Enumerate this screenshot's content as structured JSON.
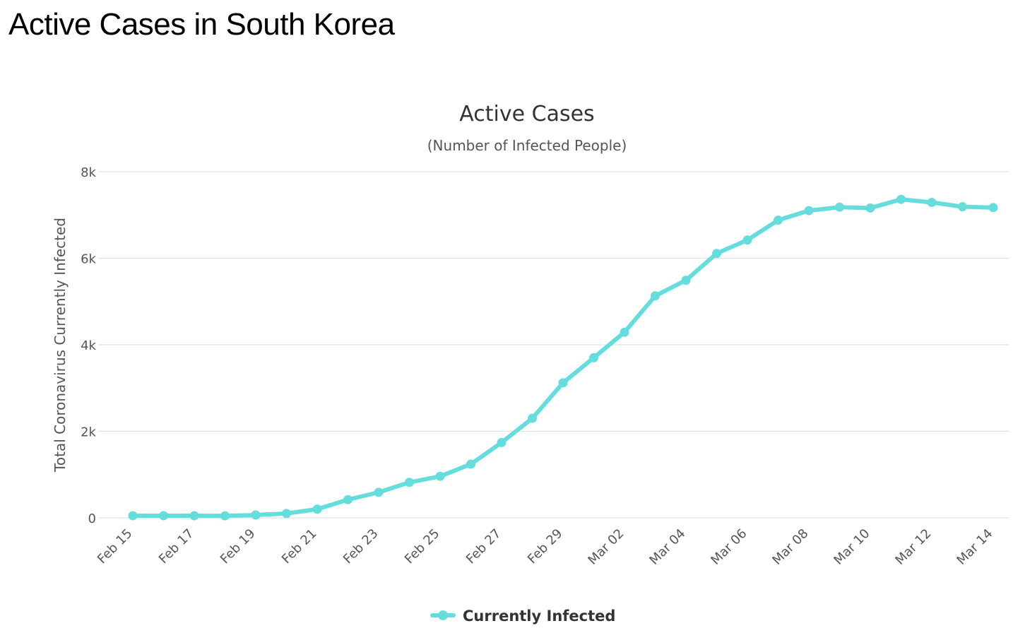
{
  "page": {
    "heading": "Active Cases in South Korea"
  },
  "chart_data": {
    "type": "line",
    "title": "Active Cases",
    "subtitle": "(Number of Infected People)",
    "ylabel": "Total Coronavirus Currently Infected",
    "xlabel": "",
    "ylim": [
      0,
      8000
    ],
    "y_ticks": [
      {
        "value": 0,
        "label": "0"
      },
      {
        "value": 2000,
        "label": "2k"
      },
      {
        "value": 4000,
        "label": "4k"
      },
      {
        "value": 6000,
        "label": "6k"
      },
      {
        "value": 8000,
        "label": "8k"
      }
    ],
    "x": [
      "Feb 15",
      "Feb 16",
      "Feb 17",
      "Feb 18",
      "Feb 19",
      "Feb 20",
      "Feb 21",
      "Feb 22",
      "Feb 23",
      "Feb 24",
      "Feb 25",
      "Feb 26",
      "Feb 27",
      "Feb 28",
      "Feb 29",
      "Mar 01",
      "Mar 02",
      "Mar 03",
      "Mar 04",
      "Mar 05",
      "Mar 06",
      "Mar 07",
      "Mar 08",
      "Mar 09",
      "Mar 10",
      "Mar 11",
      "Mar 12",
      "Mar 13",
      "Mar 14"
    ],
    "x_tick_labels": [
      "Feb 15",
      "Feb 17",
      "Feb 19",
      "Feb 21",
      "Feb 23",
      "Feb 25",
      "Feb 27",
      "Feb 29",
      "Mar 02",
      "Mar 04",
      "Mar 06",
      "Mar 08",
      "Mar 10",
      "Mar 12",
      "Mar 14"
    ],
    "series": [
      {
        "name": "Currently Infected",
        "color": "#66dddd",
        "values": [
          50,
          50,
          48,
          46,
          65,
          100,
          200,
          420,
          590,
          820,
          960,
          1240,
          1740,
          2300,
          3120,
          3700,
          4290,
          5130,
          5490,
          6110,
          6420,
          6880,
          7100,
          7180,
          7160,
          7360,
          7290,
          7190,
          7170
        ]
      }
    ],
    "grid": true,
    "legend_position": "bottom-center"
  }
}
